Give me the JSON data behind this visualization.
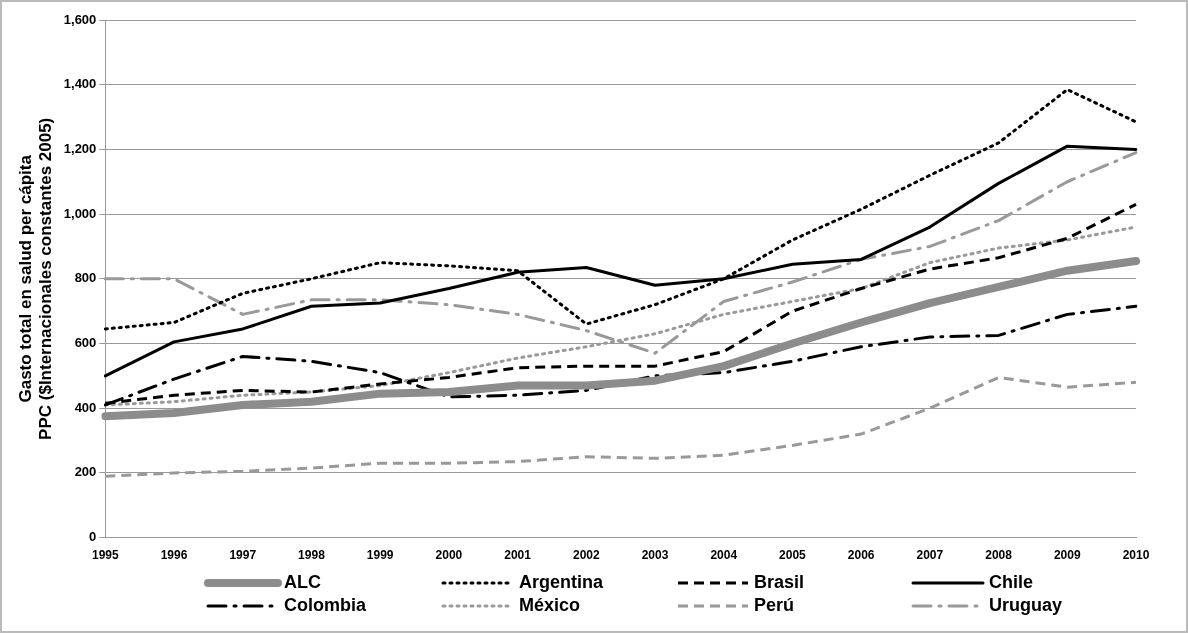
{
  "chart_data": {
    "type": "line",
    "ylabel": "Gasto total en salud per cápita\nPPC ($Internacionales constantes 2005)",
    "categories": [
      "1995",
      "1996",
      "1997",
      "1998",
      "1999",
      "2000",
      "2001",
      "2002",
      "2003",
      "2004",
      "2005",
      "2006",
      "2007",
      "2008",
      "2009",
      "2010"
    ],
    "ylim": [
      0,
      1600
    ],
    "yticks": [
      {
        "value": 0,
        "label": "0"
      },
      {
        "value": 200,
        "label": "200"
      },
      {
        "value": 400,
        "label": "400"
      },
      {
        "value": 600,
        "label": "600"
      },
      {
        "value": 800,
        "label": "800"
      },
      {
        "value": 1000,
        "label": "1,000"
      },
      {
        "value": 1200,
        "label": "1,200"
      },
      {
        "value": 1400,
        "label": "1,400"
      },
      {
        "value": 1600,
        "label": "1,600"
      }
    ],
    "grid": "y",
    "legend": "bottom",
    "marker": "none",
    "series": [
      {
        "name": "ALC",
        "color": "#8c8c8c",
        "line_style": "solid",
        "values": [
          375,
          385,
          410,
          420,
          445,
          450,
          470,
          470,
          485,
          530,
          600,
          665,
          725,
          775,
          825,
          855
        ]
      },
      {
        "name": "Argentina",
        "color": "#000000",
        "line_style": "dotted",
        "values": [
          645,
          665,
          755,
          800,
          850,
          840,
          825,
          660,
          720,
          800,
          920,
          1015,
          1120,
          1220,
          1385,
          1285
        ]
      },
      {
        "name": "Brasil",
        "color": "#000000",
        "line_style": "dashed",
        "values": [
          415,
          440,
          455,
          450,
          475,
          495,
          525,
          530,
          530,
          575,
          700,
          770,
          830,
          865,
          925,
          1030
        ]
      },
      {
        "name": "Chile",
        "color": "#000000",
        "line_style": "solid",
        "values": [
          500,
          605,
          645,
          715,
          725,
          770,
          820,
          835,
          780,
          800,
          845,
          860,
          960,
          1095,
          1210,
          1200
        ]
      },
      {
        "name": "Colombia",
        "color": "#000000",
        "line_style": "dashdot",
        "values": [
          410,
          490,
          560,
          545,
          510,
          435,
          440,
          455,
          500,
          510,
          545,
          590,
          620,
          625,
          690,
          715
        ]
      },
      {
        "name": "México",
        "color": "#999999",
        "line_style": "dotted",
        "values": [
          410,
          420,
          440,
          450,
          470,
          510,
          555,
          590,
          630,
          690,
          730,
          770,
          850,
          895,
          920,
          960
        ]
      },
      {
        "name": "Perú",
        "color": "#999999",
        "line_style": "dashed",
        "values": [
          190,
          200,
          205,
          215,
          230,
          230,
          235,
          250,
          245,
          255,
          285,
          320,
          400,
          495,
          465,
          480
        ]
      },
      {
        "name": "Uruguay",
        "color": "#999999",
        "line_style": "dashdot",
        "values": [
          800,
          800,
          690,
          735,
          735,
          720,
          690,
          640,
          570,
          730,
          790,
          860,
          900,
          980,
          1100,
          1190
        ]
      }
    ]
  }
}
